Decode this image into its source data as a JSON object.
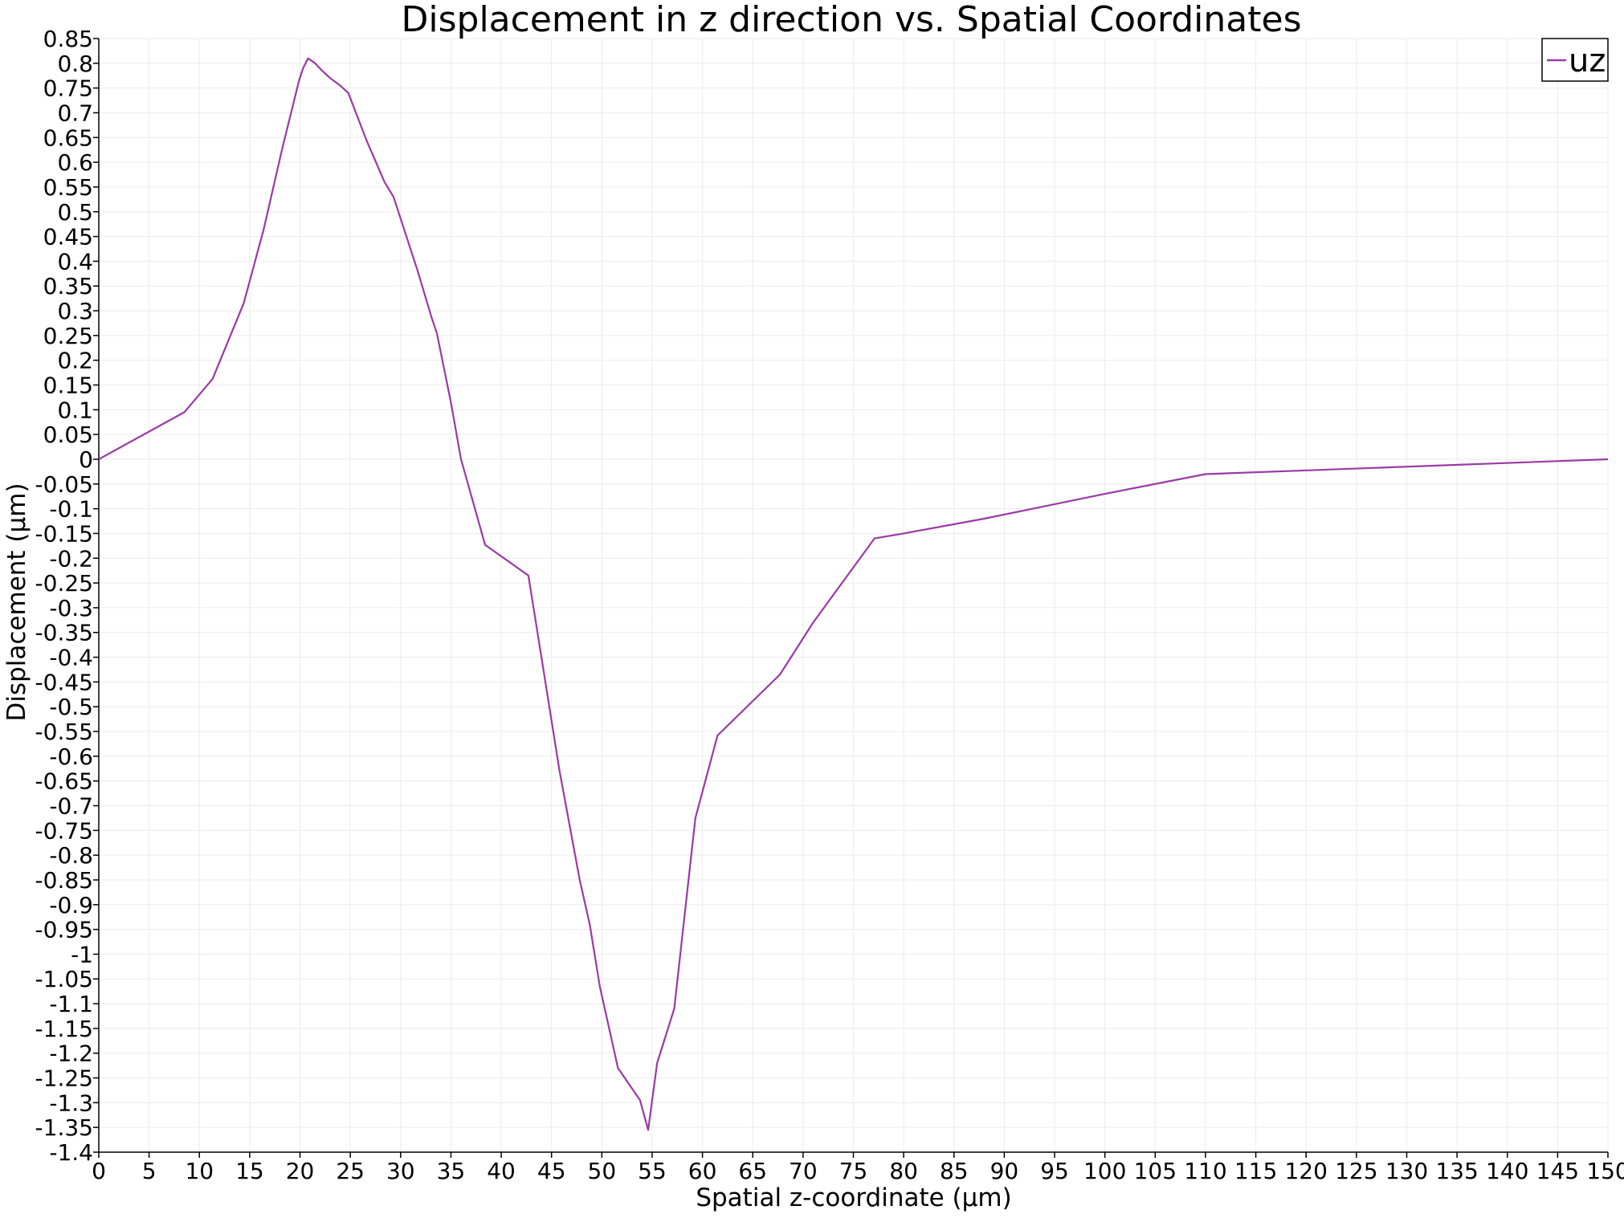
{
  "chart_data": {
    "type": "line",
    "title": "Displacement in z direction vs. Spatial Coordinates",
    "xlabel": "Spatial z-coordinate (μm)",
    "ylabel": "Displacement (μm)",
    "xlim": [
      0,
      150
    ],
    "ylim": [
      -1.4,
      0.85
    ],
    "x_ticks": [
      0,
      5,
      10,
      15,
      20,
      25,
      30,
      35,
      40,
      45,
      50,
      55,
      60,
      65,
      70,
      75,
      80,
      85,
      90,
      95,
      100,
      105,
      110,
      115,
      120,
      125,
      130,
      135,
      140,
      145,
      150
    ],
    "y_ticks": [
      0.85,
      0.8,
      0.75,
      0.7,
      0.65,
      0.6,
      0.55,
      0.5,
      0.45,
      0.4,
      0.35,
      0.3,
      0.25,
      0.2,
      0.15,
      0.1,
      0.05,
      0,
      -0.05,
      -0.1,
      -0.15,
      -0.2,
      -0.25,
      -0.3,
      -0.35,
      -0.4,
      -0.45,
      -0.5,
      -0.55,
      -0.6,
      -0.65,
      -0.7,
      -0.75,
      -0.8,
      -0.85,
      -0.9,
      -0.95,
      -1,
      -1.05,
      -1.1,
      -1.15,
      -1.2,
      -1.25,
      -1.3,
      -1.35,
      -1.4
    ],
    "grid": true,
    "legend_position": "top-right",
    "series": [
      {
        "name": "uz",
        "color": "#9a3aa5",
        "x": [
          0,
          8.5,
          11.3,
          14.4,
          16.4,
          18.2,
          19.9,
          20.3,
          20.8,
          21.5,
          22.2,
          23.0,
          24.0,
          24.8,
          26.6,
          28.4,
          29.3,
          31.7,
          33.1,
          33.6,
          35.0,
          36.0,
          38.4,
          42.7,
          45.8,
          47.8,
          48.8,
          49.8,
          51.6,
          53.8,
          54.6,
          55.5,
          57.2,
          59.3,
          61.5,
          67.7,
          71.0,
          77.1,
          80.0,
          88.0,
          100.0,
          110.0,
          150.0
        ],
        "y": [
          0.0,
          0.095,
          0.162,
          0.315,
          0.465,
          0.625,
          0.765,
          0.79,
          0.81,
          0.8,
          0.785,
          0.77,
          0.755,
          0.74,
          0.645,
          0.56,
          0.53,
          0.38,
          0.285,
          0.255,
          0.115,
          0.0,
          -0.173,
          -0.235,
          -0.63,
          -0.85,
          -0.94,
          -1.065,
          -1.23,
          -1.295,
          -1.355,
          -1.22,
          -1.11,
          -0.725,
          -0.558,
          -0.435,
          -0.33,
          -0.16,
          -0.15,
          -0.12,
          -0.07,
          -0.03,
          0.0
        ]
      }
    ]
  }
}
